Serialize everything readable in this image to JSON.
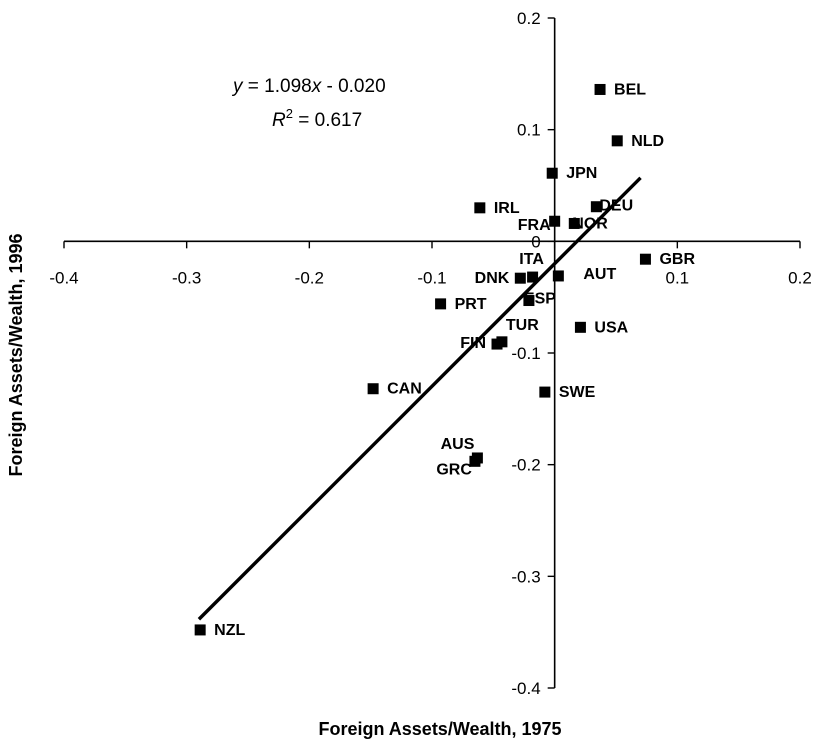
{
  "chart_data": {
    "type": "scatter",
    "xlabel": "Foreign Assets/Wealth, 1975",
    "ylabel": "Foreign Assets/Wealth, 1996",
    "xlim": [
      -0.4,
      0.2
    ],
    "ylim": [
      -0.4,
      0.2
    ],
    "x_ticks": [
      -0.4,
      -0.3,
      -0.2,
      -0.1,
      0.1,
      0.2
    ],
    "x_tick_labels": [
      "-0.4",
      "-0.3",
      "-0.2",
      "-0.1",
      "0.1",
      "0.2"
    ],
    "y_ticks": [
      -0.4,
      -0.3,
      -0.2,
      -0.1,
      0,
      0.1,
      0.2
    ],
    "y_tick_labels": [
      "-0.4",
      "-0.3",
      "-0.2",
      "-0.1",
      "0",
      "0.1",
      "0.2"
    ],
    "grid": false,
    "marker": "square",
    "color": "#000000",
    "points": [
      {
        "label": "BEL",
        "x": 0.037,
        "y": 0.136
      },
      {
        "label": "NLD",
        "x": 0.051,
        "y": 0.09
      },
      {
        "label": "JPN",
        "x": -0.002,
        "y": 0.061
      },
      {
        "label": "IRL",
        "x": -0.061,
        "y": 0.03
      },
      {
        "label": "FRA",
        "x": 0.0,
        "y": 0.018
      },
      {
        "label": "DEU",
        "x": 0.034,
        "y": 0.031
      },
      {
        "label": "NOR",
        "x": 0.016,
        "y": 0.016
      },
      {
        "label": "GBR",
        "x": 0.074,
        "y": -0.016
      },
      {
        "label": "ITA",
        "x": -0.018,
        "y": -0.032
      },
      {
        "label": "DNK",
        "x": -0.028,
        "y": -0.033
      },
      {
        "label": "AUT",
        "x": 0.003,
        "y": -0.031
      },
      {
        "label": "PRT",
        "x": -0.093,
        "y": -0.056
      },
      {
        "label": "ESP",
        "x": -0.021,
        "y": -0.053
      },
      {
        "label": "USA",
        "x": 0.021,
        "y": -0.077
      },
      {
        "label": "FIN",
        "x": -0.047,
        "y": -0.092
      },
      {
        "label": "TUR",
        "x": -0.043,
        "y": -0.09
      },
      {
        "label": "CAN",
        "x": -0.148,
        "y": -0.132
      },
      {
        "label": "SWE",
        "x": -0.008,
        "y": -0.135
      },
      {
        "label": "AUS",
        "x": -0.063,
        "y": -0.194
      },
      {
        "label": "GRC",
        "x": -0.065,
        "y": -0.197
      },
      {
        "label": "NZL",
        "x": -0.289,
        "y": -0.348
      }
    ],
    "trendline": {
      "slope": 1.098,
      "intercept": -0.02,
      "x_range": [
        -0.29,
        0.07
      ]
    },
    "annotations": {
      "equation": "y = 1.098x - 0.020",
      "r_squared": "R2 = 0.617"
    }
  }
}
